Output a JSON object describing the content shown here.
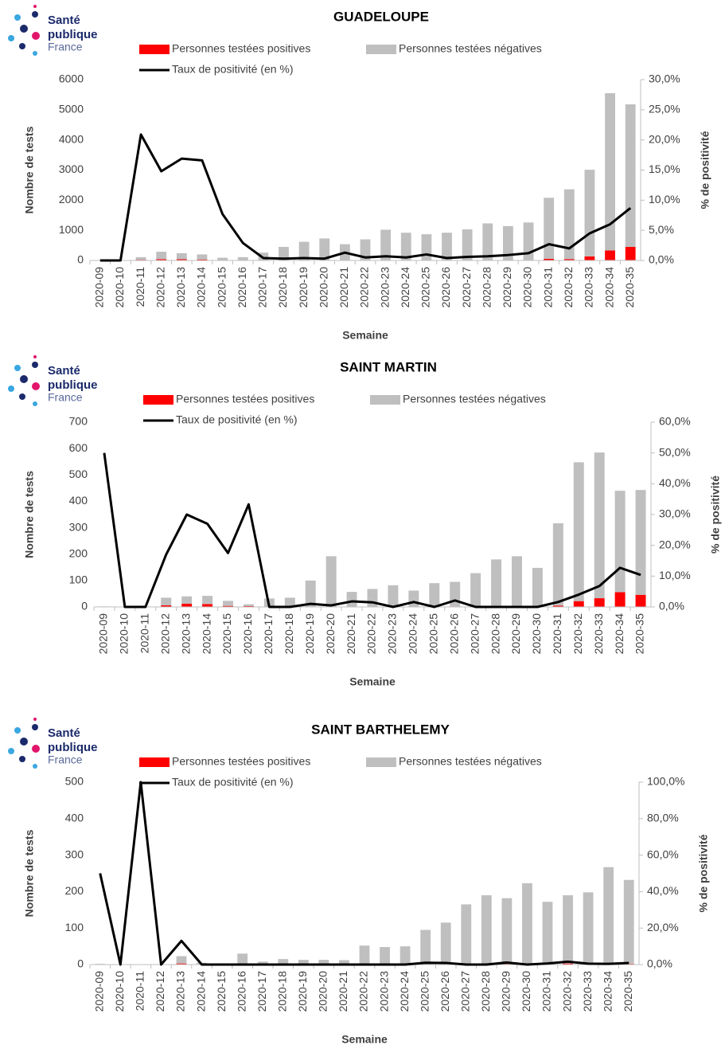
{
  "chart_data": [
    {
      "type": "bar",
      "title": "GUADELOUPE",
      "brand": [
        "Santé",
        "publique",
        "France"
      ],
      "ylabel": "Nombre de tests",
      "y2label": "% de positivité",
      "xlabel": "Semaine",
      "categories": [
        "2020-09",
        "2020-10",
        "2020-11",
        "2020-12",
        "2020-13",
        "2020-14",
        "2020-15",
        "2020-16",
        "2020-17",
        "2020-18",
        "2020-19",
        "2020-20",
        "2020-21",
        "2020-22",
        "2020-23",
        "2020-24",
        "2020-25",
        "2020-26",
        "2020-27",
        "2020-28",
        "2020-29",
        "2020-30",
        "2020-31",
        "2020-32",
        "2020-33",
        "2020-34",
        "2020-35"
      ],
      "series": [
        {
          "name": "Personnes testées positives",
          "color": "#ff0000",
          "values": [
            0,
            0,
            23,
            43,
            41,
            33,
            7,
            3,
            1,
            1,
            2,
            2,
            7,
            3,
            7,
            5,
            9,
            4,
            6,
            9,
            10,
            15,
            56,
            47,
            135,
            333,
            450
          ]
        },
        {
          "name": "Personnes testées négatives",
          "color": "#bfbfbf",
          "values": [
            0,
            0,
            87,
            247,
            199,
            167,
            83,
            107,
            259,
            449,
            618,
            728,
            533,
            697,
            1013,
            915,
            861,
            916,
            1024,
            1221,
            1130,
            1245,
            2024,
            2313,
            2875,
            5217,
            4730
          ]
        },
        {
          "name": "Taux de positivité (en %)",
          "type": "line",
          "axis": "y2",
          "color": "#000000",
          "values": [
            0,
            0,
            20.9,
            14.8,
            16.9,
            16.6,
            7.7,
            2.9,
            0.4,
            0.3,
            0.4,
            0.3,
            1.3,
            0.5,
            0.7,
            0.5,
            1.0,
            0.4,
            0.6,
            0.7,
            0.9,
            1.2,
            2.7,
            2.0,
            4.5,
            6.0,
            8.7
          ]
        }
      ],
      "ylim": [
        0,
        6000
      ],
      "yticks": [
        0,
        1000,
        2000,
        3000,
        4000,
        5000,
        6000
      ],
      "y2lim": [
        0,
        30
      ],
      "y2ticks": [
        {
          "value": 0,
          "label": "0,0%"
        },
        {
          "value": 5,
          "label": "5,0%"
        },
        {
          "value": 10,
          "label": "10,0%"
        },
        {
          "value": 15,
          "label": "15,0%"
        },
        {
          "value": 20,
          "label": "20,0%"
        },
        {
          "value": 25,
          "label": "25,0%"
        },
        {
          "value": 30,
          "label": "30,0%"
        }
      ]
    },
    {
      "type": "bar",
      "title": "SAINT MARTIN",
      "brand": [
        "Santé",
        "publique",
        "France"
      ],
      "ylabel": "Nombre de tests",
      "y2label": "% de positivité",
      "xlabel": "Semaine",
      "categories": [
        "2020-09",
        "2020-10",
        "2020-11",
        "2020-12",
        "2020-13",
        "2020-14",
        "2020-15",
        "2020-16",
        "2020-17",
        "2020-18",
        "2020-19",
        "2020-20",
        "2020-21",
        "2020-22",
        "2020-23",
        "2020-24",
        "2020-25",
        "2020-26",
        "2020-27",
        "2020-28",
        "2020-29",
        "2020-30",
        "2020-31",
        "2020-32",
        "2020-33",
        "2020-34",
        "2020-35"
      ],
      "series": [
        {
          "name": "Personnes testées positives",
          "color": "#ff0000",
          "values": [
            1,
            0,
            0,
            6,
            12,
            11,
            4,
            3,
            0,
            0,
            1,
            1,
            1,
            1,
            0,
            1,
            0,
            2,
            0,
            0,
            0,
            0,
            5,
            22,
            33,
            56,
            46
          ]
        },
        {
          "name": "Personnes testées négatives",
          "color": "#bfbfbf",
          "values": [
            1,
            0,
            0,
            29,
            28,
            31,
            19,
            7,
            32,
            35,
            99,
            191,
            56,
            67,
            82,
            61,
            90,
            93,
            128,
            180,
            192,
            148,
            312,
            526,
            552,
            384,
            397
          ]
        },
        {
          "name": "Taux de positivité (en %)",
          "type": "line",
          "axis": "y2",
          "color": "#000000",
          "values": [
            50,
            0,
            0,
            17,
            30,
            27,
            17.5,
            33.3,
            0,
            0,
            1,
            0.5,
            1.8,
            1.5,
            0,
            1.6,
            0,
            2.1,
            0,
            0,
            0,
            0,
            1.6,
            4,
            6.8,
            12.7,
            10.4
          ]
        }
      ],
      "ylim": [
        0,
        700
      ],
      "yticks": [
        0,
        100,
        200,
        300,
        400,
        500,
        600,
        700
      ],
      "y2lim": [
        0,
        60
      ],
      "y2ticks": [
        {
          "value": 0,
          "label": "0,0%"
        },
        {
          "value": 10,
          "label": "10,0%"
        },
        {
          "value": 20,
          "label": "20,0%"
        },
        {
          "value": 30,
          "label": "30,0%"
        },
        {
          "value": 40,
          "label": "40,0%"
        },
        {
          "value": 50,
          "label": "50,0%"
        },
        {
          "value": 60,
          "label": "60,0%"
        }
      ]
    },
    {
      "type": "bar",
      "title": "SAINT BARTHELEMY",
      "brand": [
        "Santé",
        "publique",
        "France"
      ],
      "ylabel": "Nombre de tests",
      "y2label": "% de positivité",
      "xlabel": "Semaine",
      "categories": [
        "2020-09",
        "2020-10",
        "2020-11",
        "2020-12",
        "2020-13",
        "2020-14",
        "2020-15",
        "2020-16",
        "2020-17",
        "2020-18",
        "2020-19",
        "2020-20",
        "2020-21",
        "2020-22",
        "2020-23",
        "2020-24",
        "2020-25",
        "2020-26",
        "2020-27",
        "2020-28",
        "2020-29",
        "2020-30",
        "2020-31",
        "2020-32",
        "2020-33",
        "2020-34",
        "2020-35"
      ],
      "series": [
        {
          "name": "Personnes testées positives",
          "color": "#ff0000",
          "values": [
            1,
            0,
            1,
            0,
            3,
            0,
            0,
            0,
            0,
            0,
            0,
            0,
            0,
            0,
            0,
            0,
            1,
            1,
            0,
            0,
            2,
            0,
            1,
            3,
            1,
            1,
            2
          ]
        },
        {
          "name": "Personnes testées négatives",
          "color": "#bfbfbf",
          "values": [
            1,
            0,
            0,
            1,
            20,
            5,
            3,
            30,
            8,
            15,
            13,
            13,
            12,
            52,
            48,
            50,
            94,
            114,
            165,
            190,
            180,
            223,
            171,
            187,
            197,
            266,
            230
          ]
        },
        {
          "name": "Taux de positivité (en %)",
          "type": "line",
          "axis": "y2",
          "color": "#000000",
          "values": [
            50,
            0,
            100,
            0,
            13,
            0,
            0,
            0,
            0,
            0,
            0,
            0,
            0,
            0,
            0,
            0,
            1,
            0.9,
            0,
            0,
            1.1,
            0,
            0.6,
            1.6,
            0.5,
            0.4,
            0.9
          ]
        }
      ],
      "ylim": [
        0,
        500
      ],
      "yticks": [
        0,
        100,
        200,
        300,
        400,
        500
      ],
      "y2lim": [
        0,
        100
      ],
      "y2ticks": [
        {
          "value": 0,
          "label": "0,0%"
        },
        {
          "value": 20,
          "label": "20,0%"
        },
        {
          "value": 40,
          "label": "40,0%"
        },
        {
          "value": 60,
          "label": "60,0%"
        },
        {
          "value": 80,
          "label": "80,0%"
        },
        {
          "value": 100,
          "label": "100,0%"
        }
      ]
    }
  ]
}
